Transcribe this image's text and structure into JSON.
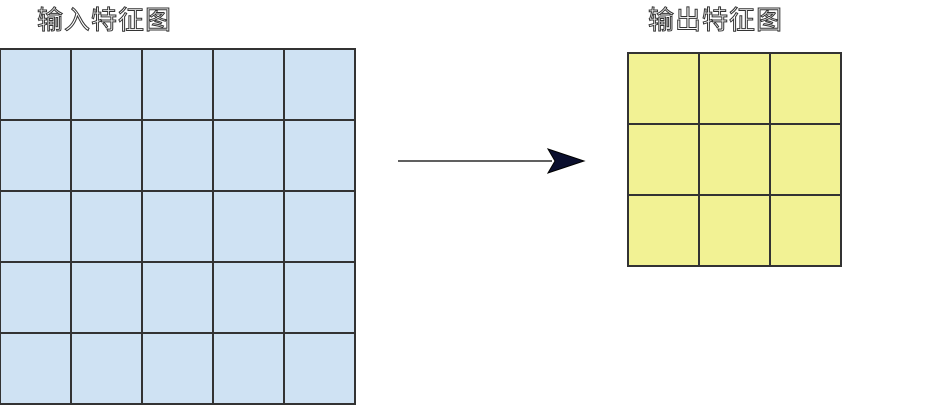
{
  "input_map": {
    "label": "输入特征图",
    "rows": 5,
    "cols": 5,
    "fill": "#cfe2f3"
  },
  "output_map": {
    "label": "输出特征图",
    "rows": 3,
    "cols": 3,
    "fill": "#f2f294"
  },
  "arrow": {
    "direction": "right",
    "color": "#000000"
  },
  "grid_line_color": "#333333"
}
